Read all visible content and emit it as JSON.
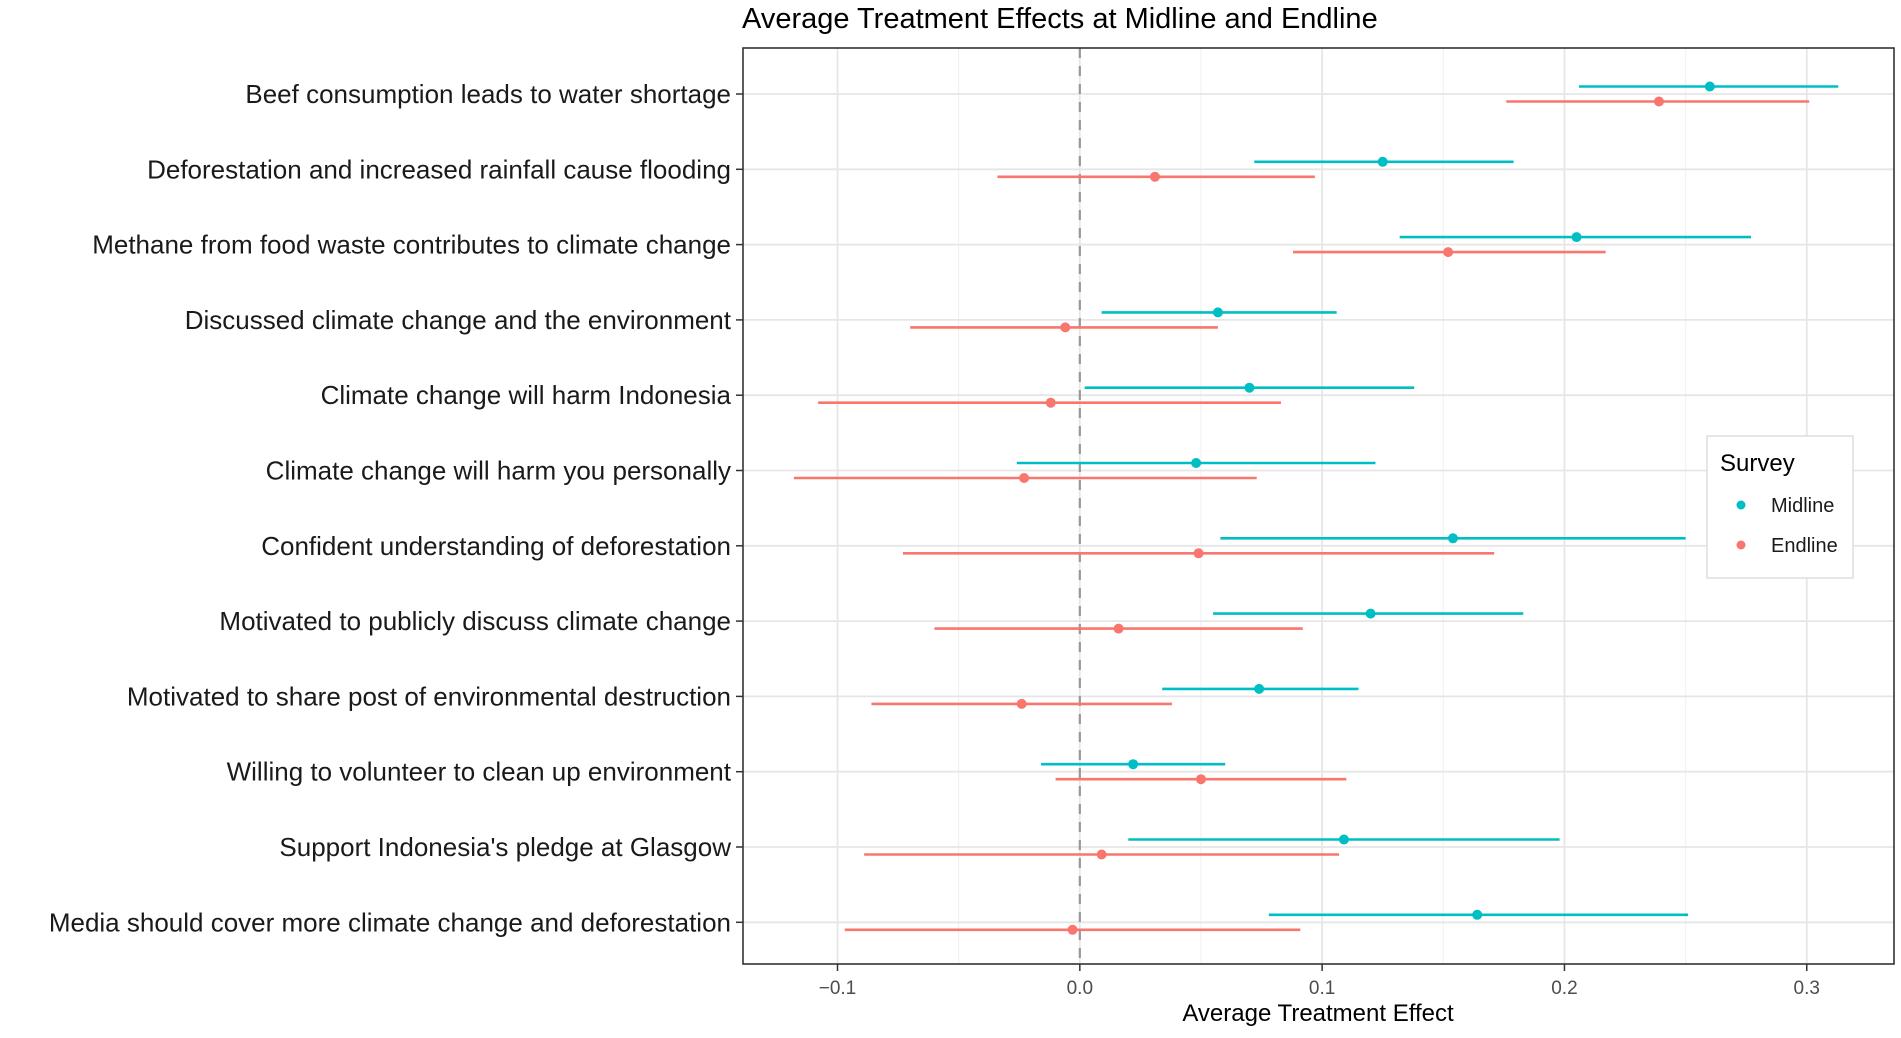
{
  "chart_data": {
    "type": "scatter",
    "subtype": "point-range (coefficient plot)",
    "title": "Average Treatment Effects at Midline and Endline",
    "xlabel": "Average Treatment Effect",
    "ylabel": "",
    "xlim": [
      -0.139,
      0.336
    ],
    "x_ticks": [
      -0.1,
      0.0,
      0.1,
      0.2,
      0.3
    ],
    "x_tick_labels": [
      "−0.1",
      "0.0",
      "0.1",
      "0.2",
      "0.3"
    ],
    "reference_line": {
      "x": 0,
      "style": "dashed"
    },
    "grid": true,
    "legend": {
      "title": "Survey",
      "placement": "right"
    },
    "categories": [
      "Beef consumption leads to water shortage",
      "Deforestation and increased rainfall cause flooding",
      "Methane from food waste contributes to climate change",
      "Discussed climate change and the environment",
      "Climate change will harm Indonesia",
      "Climate change will harm you personally",
      "Confident understanding of deforestation",
      "Motivated to publicly discuss climate change",
      "Motivated to share post of environmental destruction",
      "Willing to volunteer to clean up environment",
      "Support Indonesia's pledge at Glasgow",
      "Media should cover more climate change and deforestation"
    ],
    "series": [
      {
        "name": "Midline",
        "color": "#00BFC4",
        "estimates": [
          0.26,
          0.125,
          0.205,
          0.057,
          0.07,
          0.048,
          0.154,
          0.12,
          0.074,
          0.022,
          0.109,
          0.164
        ],
        "ci_low": [
          0.206,
          0.072,
          0.132,
          0.009,
          0.002,
          -0.026,
          0.058,
          0.055,
          0.034,
          -0.016,
          0.02,
          0.078
        ],
        "ci_high": [
          0.313,
          0.179,
          0.277,
          0.106,
          0.138,
          0.122,
          0.25,
          0.183,
          0.115,
          0.06,
          0.198,
          0.251
        ]
      },
      {
        "name": "Endline",
        "color": "#F8766D",
        "estimates": [
          0.239,
          0.031,
          0.152,
          -0.006,
          -0.012,
          -0.023,
          0.049,
          0.016,
          -0.024,
          0.05,
          0.009,
          -0.003
        ],
        "ci_low": [
          0.176,
          -0.034,
          0.088,
          -0.07,
          -0.108,
          -0.118,
          -0.073,
          -0.06,
          -0.086,
          -0.01,
          -0.089,
          -0.097
        ],
        "ci_high": [
          0.301,
          0.097,
          0.217,
          0.057,
          0.083,
          0.073,
          0.171,
          0.092,
          0.038,
          0.11,
          0.107,
          0.091
        ]
      }
    ]
  }
}
